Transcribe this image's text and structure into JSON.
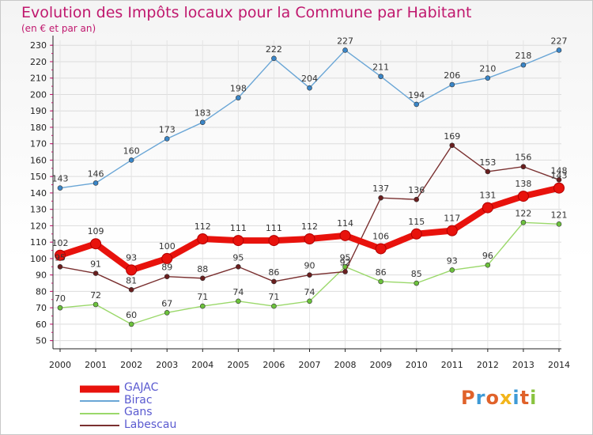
{
  "title": "Evolution des Impôts locaux pour la Commune par Habitant",
  "subtitle": "(en € et par an)",
  "logo": {
    "text": "Proxiti",
    "colors": [
      "#e0622a",
      "#3e9ad6",
      "#e0622a",
      "#f2b51b",
      "#3e9ad6",
      "#e0622a",
      "#8ac33f"
    ]
  },
  "chart_data": {
    "type": "line",
    "title": "Evolution des Impôts locaux pour la Commune par Habitant",
    "subtitle": "(en € et par an)",
    "xlabel": "",
    "ylabel": "",
    "x": [
      "2000",
      "2001",
      "2002",
      "2003",
      "2004",
      "2005",
      "2006",
      "2007",
      "2008",
      "2009",
      "2010",
      "2011",
      "2012",
      "2013",
      "2014"
    ],
    "yticks": [
      50,
      60,
      70,
      80,
      90,
      100,
      110,
      120,
      130,
      140,
      150,
      160,
      170,
      180,
      190,
      200,
      210,
      220,
      230
    ],
    "ylim": [
      45,
      233
    ],
    "grid": true,
    "legend_position": "bottom-left",
    "series": [
      {
        "name": "GAJAC",
        "color": "#e8120c",
        "point_color": "#e8120c",
        "bold": true,
        "values": [
          102,
          109,
          93,
          100,
          112,
          111,
          111,
          112,
          114,
          106,
          115,
          117,
          131,
          138,
          143
        ]
      },
      {
        "name": "Birac",
        "color": "#6aa6d6",
        "point_color": "#3a86c8",
        "bold": false,
        "values": [
          143,
          146,
          160,
          173,
          183,
          198,
          222,
          204,
          227,
          211,
          194,
          206,
          210,
          218,
          227
        ]
      },
      {
        "name": "Gans",
        "color": "#9ad86a",
        "point_color": "#6cc23c",
        "bold": false,
        "values": [
          70,
          72,
          60,
          67,
          71,
          74,
          71,
          74,
          95,
          86,
          85,
          93,
          96,
          122,
          121
        ]
      },
      {
        "name": "Labescau",
        "color": "#7a3030",
        "point_color": "#6a1e1e",
        "bold": false,
        "values": [
          95,
          91,
          81,
          89,
          88,
          95,
          86,
          90,
          92,
          137,
          136,
          169,
          153,
          156,
          148
        ]
      }
    ],
    "data_labels": [
      {
        "series": "GAJAC",
        "labels": [
          "102",
          "109",
          "93",
          "100",
          "112",
          "111",
          "111",
          "112",
          "114",
          "106",
          "115",
          "117",
          "131",
          "138",
          "143"
        ]
      },
      {
        "series": "Birac",
        "labels": [
          "143",
          "146",
          "160",
          "173",
          "183",
          "198",
          "222",
          "204",
          "227",
          "211",
          "194",
          "206",
          "210",
          "218",
          "227"
        ]
      },
      {
        "series": "Gans",
        "labels": [
          "70",
          "72",
          "60",
          "67",
          "71",
          "74",
          "71",
          "74",
          "95",
          "86",
          "85",
          "93",
          "96",
          "122",
          "121"
        ]
      },
      {
        "series": "Labescau",
        "labels": [
          "95",
          "91",
          "81",
          "89",
          "88",
          "95",
          "86",
          "90",
          "92",
          "137",
          "136",
          "169",
          "153",
          "156",
          "148"
        ]
      }
    ]
  }
}
